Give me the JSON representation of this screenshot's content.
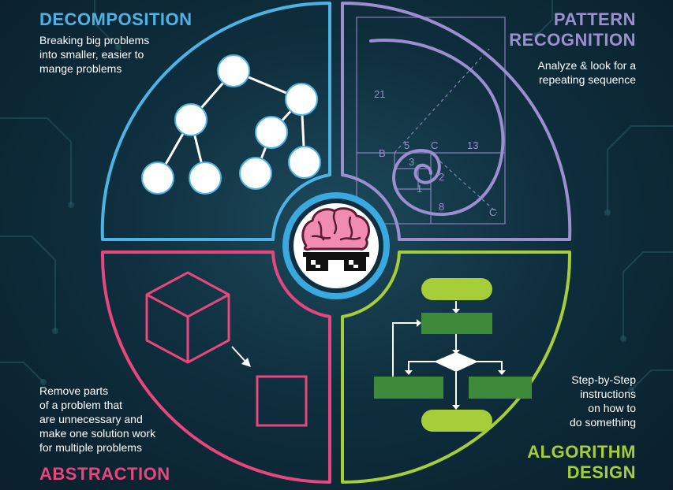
{
  "sections": {
    "decomposition": {
      "title": "DECOMPOSITION",
      "description": "Breaking big problems\ninto smaller, easier to\nmange problems",
      "color": "#4db3e6"
    },
    "pattern_recognition": {
      "title": "PATTERN\nRECOGNITION",
      "description": "Analyze & look for a\nrepeating sequence",
      "color": "#9b8fd0",
      "spiral_labels": [
        "21",
        "B",
        "5",
        "C",
        "13",
        "3",
        "2",
        "1",
        "8",
        "C"
      ]
    },
    "abstraction": {
      "title": "ABSTRACTION",
      "description": "Remove parts\nof a problem that\nare unnecessary and\nmake one solution work\nfor multiple problems",
      "color": "#e8467f"
    },
    "algorithm_design": {
      "title": "ALGORITHM\nDESIGN",
      "description": "Step-by-Step\ninstructions\non how to\ndo something",
      "color": "#a6ce39"
    }
  },
  "center": {
    "icon": "brain-with-glasses-icon",
    "ring_color": "#3aa9e0",
    "brain_color": "#f08cb0"
  },
  "background": {
    "color": "#0f2f3e",
    "circuit_color": "#2a5a6a"
  }
}
